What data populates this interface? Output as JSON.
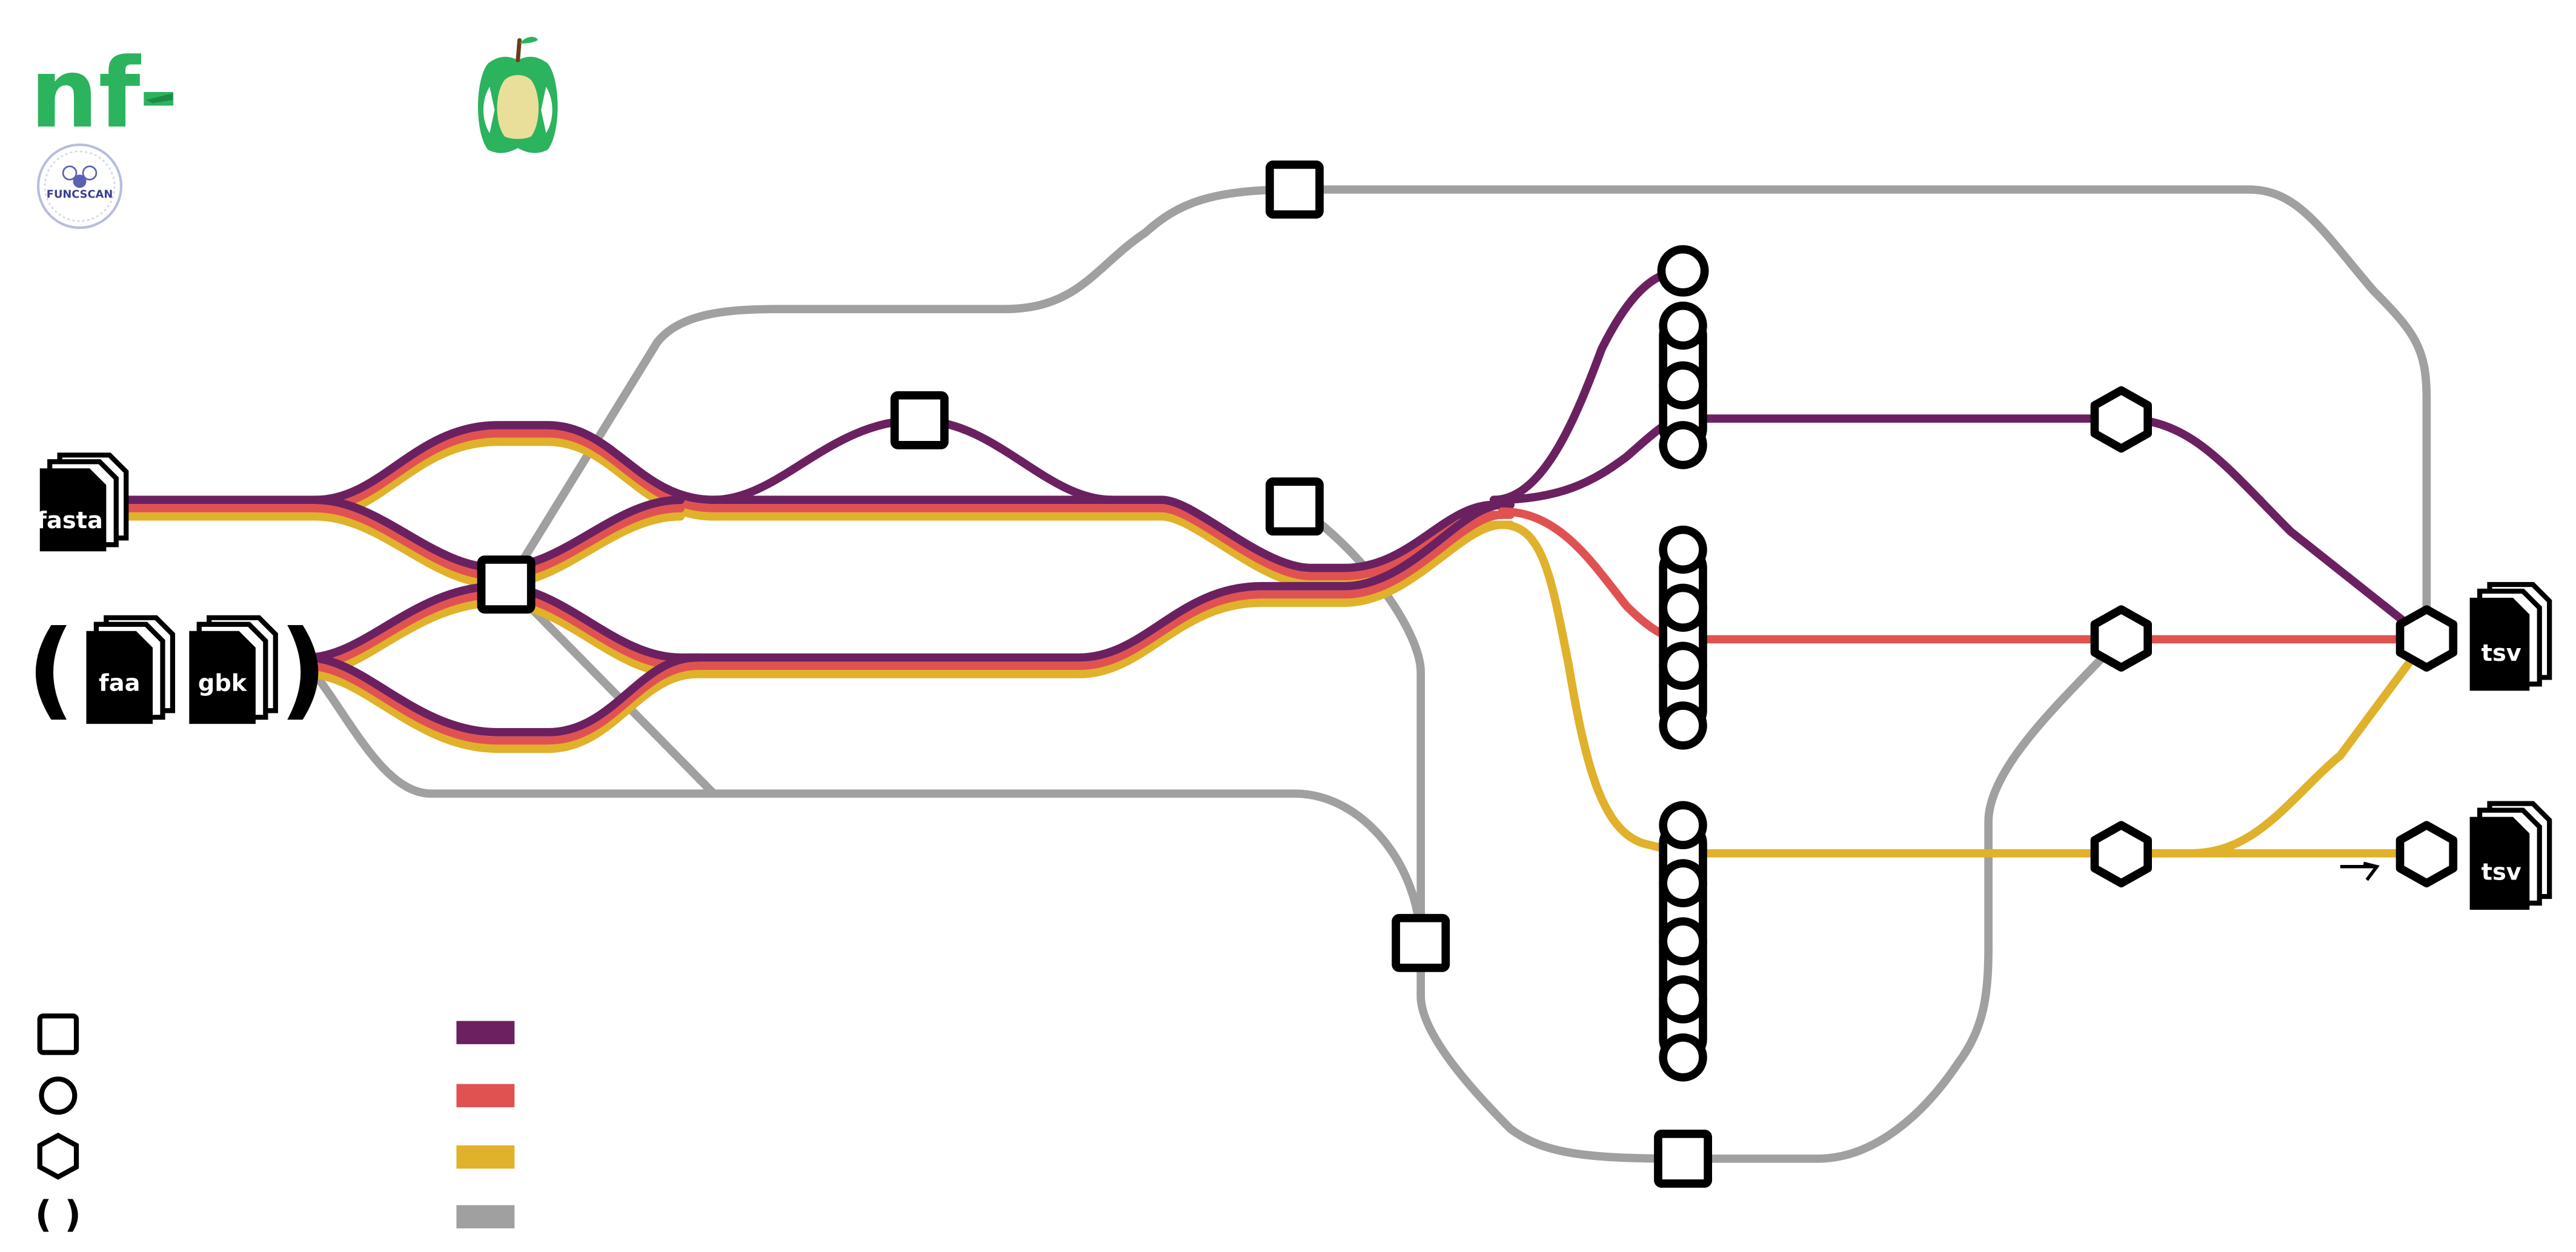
{
  "header": {
    "title_prefix": "nf-",
    "funcscan_logo_text": "FUNCSCAN",
    "logo_icon": "apple-core-icon"
  },
  "inputs": {
    "fasta_label": "fasta",
    "faa_label": "faa",
    "gbk_label": "gbk",
    "optional_open": "(",
    "optional_close": ")"
  },
  "outputs": {
    "tsv_top_label": "tsv",
    "tsv_bottom_label": "tsv"
  },
  "legend": {
    "symbols": [
      {
        "icon": "square-node-icon"
      },
      {
        "icon": "circle-node-icon"
      },
      {
        "icon": "hexagon-node-icon"
      },
      {
        "icon": "optional-parentheses-icon",
        "text": "( )"
      }
    ],
    "colors": [
      {
        "icon": "purple-line-icon",
        "color": "#6b2160"
      },
      {
        "icon": "red-line-icon",
        "color": "#e05252"
      },
      {
        "icon": "yellow-line-icon",
        "color": "#e0b12a"
      },
      {
        "icon": "grey-line-icon",
        "color": "#a0a0a0"
      }
    ]
  },
  "colors": {
    "purple": "#6b2160",
    "red": "#e05252",
    "yellow": "#e0b12a",
    "grey": "#a0a0a0",
    "brand_green": "#2bb35e",
    "node_stroke": "#000000"
  }
}
